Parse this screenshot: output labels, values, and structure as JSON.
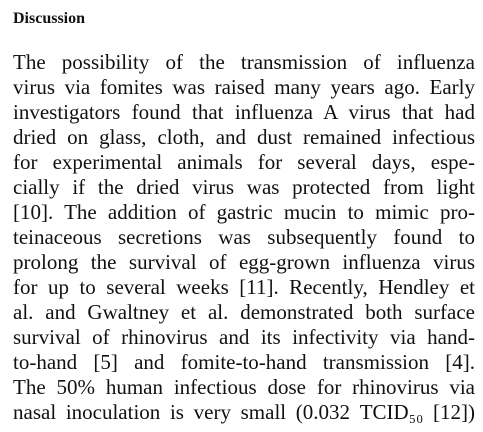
{
  "section": {
    "heading": "Discussion"
  },
  "paragraph": {
    "lines": [
      "The possibility of the transmission of influenza",
      "virus via fomites was raised many years ago. Early",
      "investigators found that influenza A virus that had",
      "dried on glass, cloth, and dust remained infectious",
      "for experimental animals for several days, espe-",
      "cially if the dried virus was protected from light",
      "[10]. The addition of gastric mucin to mimic pro-",
      "teinaceous secretions was subsequently found to",
      "prolong the survival of egg-grown influenza virus",
      "for up to several weeks [11]. Recently, Hendley et",
      "al. and Gwaltney et al. demonstrated both surface",
      "survival of rhinovirus and its infectivity via hand-",
      "to-hand [5] and fomite-to-hand transmission [4].",
      "The 50% human infectious dose for rhinovirus via"
    ],
    "last_line": {
      "prefix": "nasal inoculation is very small (0.032 ",
      "unit": "TCID₅₀",
      "suffix": " [12])"
    }
  }
}
